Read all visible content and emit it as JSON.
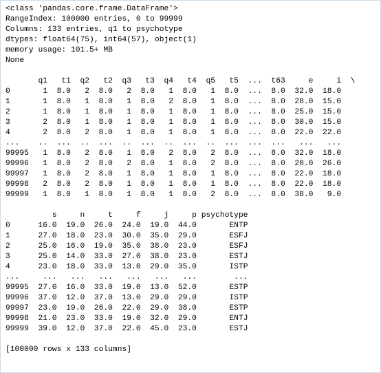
{
  "info": [
    "<class 'pandas.core.frame.DataFrame'>",
    "RangeIndex: 100000 entries, 0 to 99999",
    "Columns: 133 entries, q1 to psychotype",
    "dtypes: float64(75), int64(57), object(1)",
    "memory usage: 101.5+ MB",
    "None"
  ],
  "table1": [
    "       q1   t1  q2   t2  q3   t3  q4   t4  q5   t5  ...  t63     e     i  \\",
    "0       1  8.0   2  8.0   2  8.0   1  8.0   1  8.0  ...  8.0  32.0  18.0",
    "1       1  8.0   1  8.0   1  8.0   2  8.0   1  8.0  ...  8.0  28.0  15.0",
    "2       1  8.0   1  8.0   1  8.0   1  8.0   1  8.0  ...  8.0  25.0  15.0",
    "3       2  8.0   1  8.0   1  8.0   1  8.0   1  8.0  ...  8.0  30.0  15.0",
    "4       2  8.0   2  8.0   1  8.0   1  8.0   1  8.0  ...  8.0  22.0  22.0",
    "...    ..  ...  ..  ...  ..  ...  ..  ...  ..  ...  ...  ...   ...   ...",
    "99995   1  8.0   2  8.0   1  8.0   2  8.0   2  8.0  ...  8.0  32.0  18.0",
    "99996   1  8.0   2  8.0   2  8.0   1  8.0   2  8.0  ...  8.0  20.0  26.0",
    "99997   1  8.0   2  8.0   1  8.0   1  8.0   1  8.0  ...  8.0  22.0  18.0",
    "99998   2  8.0   2  8.0   1  8.0   1  8.0   1  8.0  ...  8.0  22.0  18.0",
    "99999   1  8.0   1  8.0   1  8.0   1  8.0   2  8.0  ...  8.0  38.0   9.0"
  ],
  "table2": [
    "          s     n     t     f     j     p psychotype",
    "0      16.0  19.0  26.0  24.0  19.0  44.0       ENTP",
    "1      27.0  18.0  23.0  30.0  35.0  29.0       ESFJ",
    "2      25.0  16.0  19.0  35.0  38.0  23.0       ESFJ",
    "3      25.0  14.0  33.0  27.0  38.0  23.0       ESTJ",
    "4      23.0  18.0  33.0  13.0  29.0  35.0       ISTP",
    "...     ...   ...   ...   ...   ...   ...        ...",
    "99995  27.0  16.0  33.0  19.0  13.0  52.0       ESTP",
    "99996  37.0  12.0  37.0  13.0  29.0  29.0       ISTP",
    "99997  23.0  19.0  26.0  22.0  29.0  38.0       ESTP",
    "99998  21.0  23.0  33.0  19.0  32.0  29.0       ENTJ",
    "99999  39.0  12.0  37.0  22.0  45.0  23.0       ESTJ"
  ],
  "footer": "[100000 rows x 133 columns]"
}
